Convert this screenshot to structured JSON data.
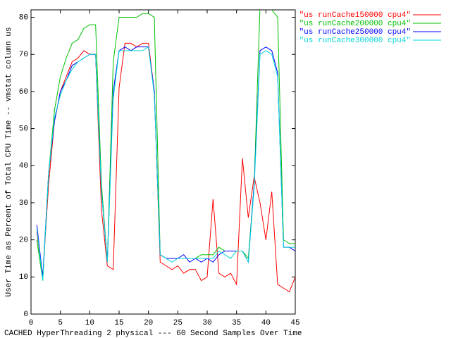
{
  "chart_data": {
    "type": "line",
    "y_label": "User Time as Percent of Total CPU Time -- vmstat column us",
    "x_label": "CACHED HyperThreading 2 physical --- 60 Second Samples Over Time",
    "x": [
      1,
      2,
      3,
      4,
      5,
      6,
      7,
      8,
      9,
      10,
      11,
      12,
      13,
      14,
      15,
      16,
      17,
      18,
      19,
      20,
      21,
      22,
      23,
      24,
      25,
      26,
      27,
      28,
      29,
      30,
      31,
      32,
      33,
      34,
      35,
      36,
      37,
      38,
      39,
      40,
      41,
      42,
      43,
      44,
      45
    ],
    "series": [
      {
        "name": "\"us runCache150000 cpu4\"",
        "color": "#ff0000",
        "values": [
          22,
          10,
          35,
          52,
          60,
          64,
          68,
          69,
          71,
          70,
          70,
          28,
          13,
          12,
          61,
          73,
          73,
          72,
          73,
          73,
          60,
          14,
          13,
          12,
          13,
          11,
          12,
          12,
          9,
          10,
          31,
          11,
          10,
          11,
          8,
          42,
          26,
          37,
          30,
          20,
          33,
          8,
          7,
          6,
          10
        ]
      },
      {
        "name": "\"us runCache200000 cpu4\"",
        "color": "#00c000",
        "values": [
          20,
          9,
          38,
          55,
          64,
          69,
          73,
          74,
          77,
          78,
          78,
          35,
          14,
          68,
          80,
          80,
          80,
          80,
          81,
          81,
          80,
          16,
          15,
          15,
          15,
          15,
          15,
          15,
          16,
          16,
          16,
          18,
          17,
          17,
          17,
          17,
          15,
          35,
          83,
          83,
          82,
          80,
          20,
          19,
          19
        ]
      },
      {
        "name": "\"us runCache250000 cpu4\"",
        "color": "#0000ff",
        "values": [
          24,
          10,
          38,
          52,
          60,
          63,
          67,
          68,
          69,
          70,
          70,
          33,
          14,
          60,
          71,
          72,
          71,
          72,
          72,
          72,
          60,
          16,
          15,
          15,
          15,
          16,
          14,
          15,
          14,
          15,
          14,
          16,
          17,
          17,
          17,
          17,
          14,
          35,
          71,
          72,
          71,
          65,
          18,
          18,
          17
        ]
      },
      {
        "name": "\"us runCache300000 cpu4\"",
        "color": "#00d8d8",
        "values": [
          23,
          9,
          38,
          53,
          59,
          63,
          66,
          68,
          69,
          70,
          70,
          33,
          14,
          58,
          71,
          71,
          71,
          71,
          71,
          72,
          59,
          16,
          15,
          14,
          15,
          15,
          15,
          15,
          15,
          15,
          15,
          17,
          16,
          15,
          17,
          17,
          14,
          34,
          70,
          71,
          70,
          64,
          18,
          18,
          18
        ]
      }
    ],
    "xlim": [
      0,
      45
    ],
    "xticks": [
      0,
      5,
      10,
      15,
      20,
      25,
      30,
      35,
      40,
      45
    ],
    "ylim": [
      0,
      82
    ],
    "yticks": [
      0,
      10,
      20,
      30,
      40,
      50,
      60,
      70,
      80
    ],
    "legend": "outside-right-top"
  }
}
